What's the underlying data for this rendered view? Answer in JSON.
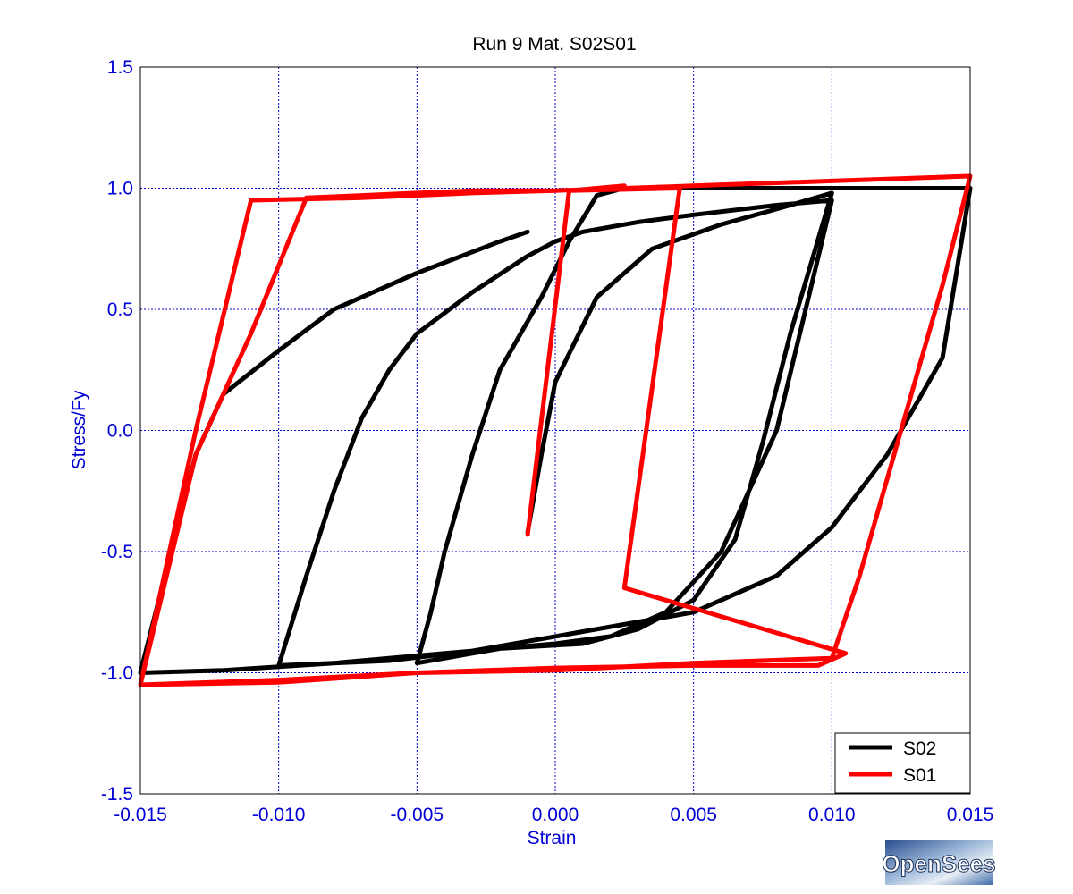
{
  "chart_data": {
    "type": "line",
    "title": "Run 9   Mat. S02S01",
    "xlabel": "Strain",
    "ylabel": "Stress/Fy",
    "xlim": [
      -0.015,
      0.015
    ],
    "ylim": [
      -1.5,
      1.5
    ],
    "xticks": [
      -0.015,
      -0.01,
      -0.005,
      0.0,
      0.005,
      0.01,
      0.015
    ],
    "xtick_labels": [
      "-0.015",
      "-0.010",
      "-0.005",
      "0.000",
      "0.005",
      "0.010",
      "0.015"
    ],
    "yticks": [
      -1.5,
      -1.0,
      -0.5,
      0.0,
      0.5,
      1.0,
      1.5
    ],
    "ytick_labels": [
      "-1.5",
      "-1.0",
      "-0.5",
      "0.0",
      "0.5",
      "1.0",
      "1.5"
    ],
    "grid": true,
    "legend_position": "bottom-right",
    "series": [
      {
        "name": "S02",
        "color": "#000000",
        "x": [
          -0.001,
          -0.0005,
          0.0,
          0.0015,
          0.0035,
          0.006,
          0.0085,
          0.01,
          0.0085,
          0.0075,
          0.0065,
          0.005,
          0.003,
          0.001,
          -0.002,
          -0.005,
          -0.0045,
          -0.004,
          -0.003,
          -0.002,
          -0.0005,
          0.0005,
          0.0015,
          0.0025,
          0.006,
          0.01,
          0.015,
          0.014,
          0.012,
          0.01,
          0.008,
          0.005,
          0.0,
          -0.003,
          -0.006,
          -0.01,
          -0.009,
          -0.008,
          -0.007,
          -0.006,
          -0.005,
          -0.003,
          -0.001,
          0.0,
          0.001,
          0.003,
          0.005,
          0.008,
          0.01,
          0.008,
          0.006,
          0.004,
          0.002,
          0.0,
          -0.002,
          -0.005,
          -0.008,
          -0.012,
          -0.015,
          -0.014,
          -0.013,
          -0.012,
          -0.01,
          -0.008,
          -0.005,
          -0.002,
          -0.001
        ],
        "y": [
          -0.42,
          -0.1,
          0.2,
          0.55,
          0.75,
          0.85,
          0.93,
          0.98,
          0.4,
          -0.05,
          -0.45,
          -0.7,
          -0.82,
          -0.88,
          -0.9,
          -0.96,
          -0.75,
          -0.5,
          -0.1,
          0.25,
          0.55,
          0.78,
          0.97,
          1.0,
          1.0,
          1.0,
          1.0,
          0.3,
          -0.1,
          -0.4,
          -0.6,
          -0.75,
          -0.85,
          -0.91,
          -0.95,
          -0.97,
          -0.6,
          -0.25,
          0.05,
          0.25,
          0.4,
          0.57,
          0.72,
          0.78,
          0.82,
          0.86,
          0.89,
          0.93,
          0.95,
          0.0,
          -0.5,
          -0.75,
          -0.85,
          -0.88,
          -0.9,
          -0.93,
          -0.96,
          -0.99,
          -1.0,
          -0.55,
          -0.1,
          0.15,
          0.33,
          0.5,
          0.65,
          0.78,
          0.82
        ]
      },
      {
        "name": "S01",
        "color": "#ff0000",
        "x": [
          -0.001,
          0.0005,
          0.0025,
          0.0005,
          0.0045,
          0.0025,
          0.0105,
          0.0095,
          0.005,
          0.0,
          -0.005,
          -0.01,
          -0.015,
          -0.013,
          -0.011,
          -0.007,
          -0.003,
          0.0,
          0.0025,
          0.005,
          0.01,
          0.015,
          0.014,
          0.013,
          0.012,
          0.011,
          0.01,
          0.005,
          0.0,
          -0.005,
          -0.01,
          -0.015,
          -0.013,
          -0.011,
          -0.009,
          -0.007,
          -0.005,
          -0.003,
          -0.001,
          0.0
        ],
        "y": [
          -0.43,
          0.99,
          1.01,
          0.99,
          1.0,
          -0.65,
          -0.92,
          -0.97,
          -0.97,
          -0.98,
          -1.0,
          -1.04,
          -1.05,
          0.0,
          0.95,
          0.96,
          0.98,
          0.99,
          1.0,
          1.01,
          1.03,
          1.05,
          0.6,
          0.2,
          -0.2,
          -0.6,
          -0.94,
          -0.96,
          -0.99,
          -1.0,
          -1.03,
          -1.05,
          -0.1,
          0.4,
          0.96,
          0.97,
          0.98,
          0.99,
          0.99,
          0.99
        ]
      }
    ]
  },
  "logo": {
    "text": "OpenSees"
  }
}
